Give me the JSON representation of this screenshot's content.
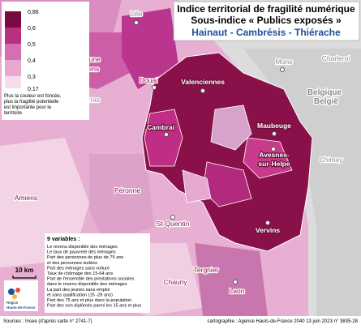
{
  "title": {
    "line1": "Indice territorial de fragilité numérique",
    "line2": "Sous-indice « Publics exposés »",
    "line3": "Hainaut - Cambrésis - Thiérache"
  },
  "legend": {
    "classes": [
      "0,86",
      "0,6",
      "0,5",
      "0,4",
      "0,3",
      "0,17"
    ],
    "note": [
      "Plus la couleur est foncée,",
      "plus la fragilité potentielle",
      "est importante pour le",
      "territoire"
    ]
  },
  "places": [
    "Lille",
    "Béthune",
    "Lens",
    "Douai",
    "Arras",
    "Valenciennes",
    "Maubeuge",
    "Cambrai",
    "Avesnes-",
    "sur-Helpe",
    "Mons",
    "Charleroi",
    "Belgique",
    "België",
    "Chimay",
    "Amiens",
    "Péronne",
    "St-Quentin",
    "Vervins",
    "Tergnier",
    "Chauny",
    "Laon"
  ],
  "variables": {
    "heading": "9 variables :",
    "items": [
      "Le revenu disponible des ménages",
      "Le taux de pauvreté des ménages",
      "Part des personnes de plus de 75 ans",
      "et des personnes isolées",
      "Part des ménages sans voiture",
      "Taux de chômage des 15-64 ans",
      "Part de l'ensemble des prestations sociales",
      "dans le revenu disponible des ménages",
      "La part des jeunes sans emploi",
      "et sans qualification (15 -29 ans)",
      "Part des 75 ans et plus dans la population",
      "Part des non diplômés parmi les 15 ans et plus"
    ]
  },
  "scale": "10 km",
  "logo": [
    "Région",
    "Hauts-de-France"
  ],
  "footer": {
    "sources": "Sources : Insee (d'après carte n° 2741-7)",
    "credit": "cartographie : Agence Hauts-de-France 2040    13 juin 2023  n° 3835-28"
  }
}
